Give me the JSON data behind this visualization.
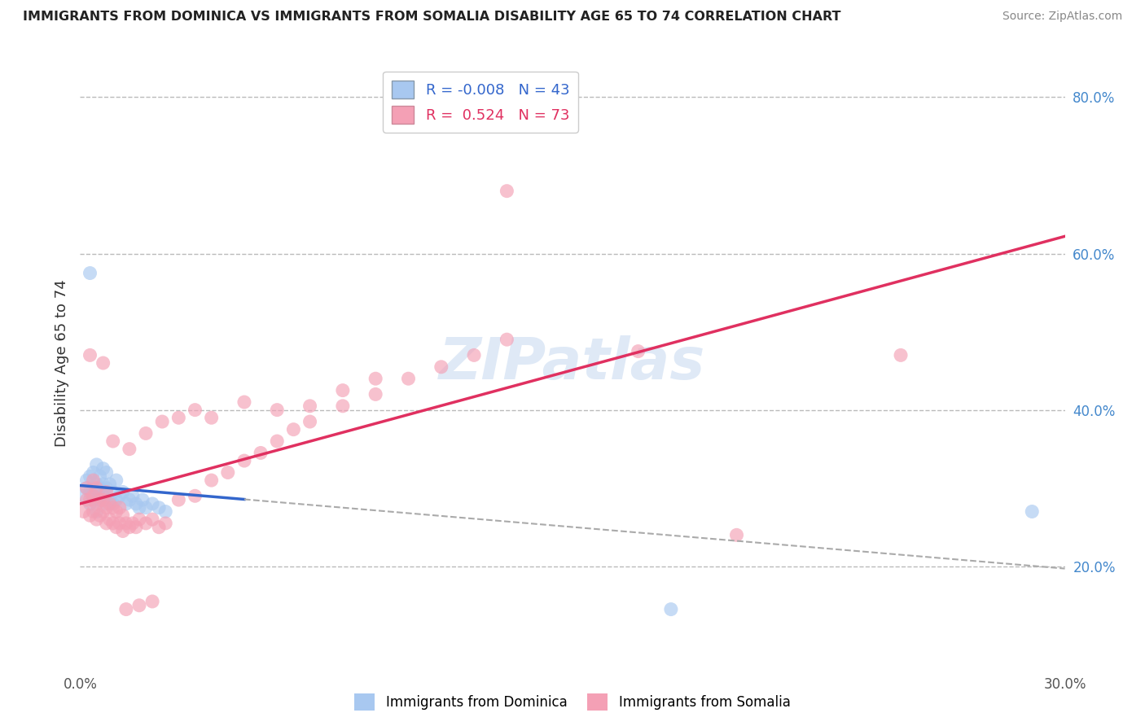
{
  "title": "IMMIGRANTS FROM DOMINICA VS IMMIGRANTS FROM SOMALIA DISABILITY AGE 65 TO 74 CORRELATION CHART",
  "source": "Source: ZipAtlas.com",
  "ylabel": "Disability Age 65 to 74",
  "xlim": [
    0.0,
    0.3
  ],
  "ylim": [
    0.07,
    0.85
  ],
  "dominica_R": -0.008,
  "dominica_N": 43,
  "somalia_R": 0.524,
  "somalia_N": 73,
  "dominica_color": "#A8C8F0",
  "somalia_color": "#F4A0B5",
  "dominica_line_color": "#3366CC",
  "somalia_line_color": "#E03060",
  "watermark": "ZIPatlas",
  "background_color": "#FFFFFF",
  "grid_color": "#BBBBBB",
  "dominica_x": [
    0.001,
    0.002,
    0.002,
    0.003,
    0.003,
    0.003,
    0.004,
    0.004,
    0.004,
    0.005,
    0.005,
    0.005,
    0.005,
    0.006,
    0.006,
    0.006,
    0.007,
    0.007,
    0.007,
    0.008,
    0.008,
    0.008,
    0.009,
    0.009,
    0.01,
    0.01,
    0.011,
    0.011,
    0.012,
    0.013,
    0.014,
    0.015,
    0.016,
    0.017,
    0.018,
    0.019,
    0.02,
    0.022,
    0.024,
    0.026,
    0.003,
    0.29,
    0.18
  ],
  "dominica_y": [
    0.29,
    0.3,
    0.31,
    0.28,
    0.295,
    0.315,
    0.285,
    0.3,
    0.32,
    0.27,
    0.29,
    0.305,
    0.33,
    0.285,
    0.3,
    0.315,
    0.29,
    0.305,
    0.325,
    0.28,
    0.3,
    0.32,
    0.285,
    0.305,
    0.28,
    0.295,
    0.285,
    0.31,
    0.29,
    0.295,
    0.28,
    0.285,
    0.29,
    0.28,
    0.275,
    0.285,
    0.275,
    0.28,
    0.275,
    0.27,
    0.575,
    0.27,
    0.145
  ],
  "somalia_x": [
    0.001,
    0.002,
    0.002,
    0.003,
    0.003,
    0.004,
    0.004,
    0.004,
    0.005,
    0.005,
    0.005,
    0.006,
    0.006,
    0.007,
    0.007,
    0.008,
    0.008,
    0.008,
    0.009,
    0.009,
    0.01,
    0.01,
    0.011,
    0.011,
    0.012,
    0.012,
    0.013,
    0.013,
    0.014,
    0.015,
    0.016,
    0.017,
    0.018,
    0.02,
    0.022,
    0.024,
    0.026,
    0.03,
    0.035,
    0.04,
    0.045,
    0.05,
    0.055,
    0.06,
    0.065,
    0.07,
    0.08,
    0.09,
    0.1,
    0.11,
    0.12,
    0.13,
    0.003,
    0.007,
    0.01,
    0.015,
    0.02,
    0.025,
    0.03,
    0.035,
    0.04,
    0.05,
    0.06,
    0.07,
    0.08,
    0.09,
    0.25,
    0.13,
    0.17,
    0.2,
    0.014,
    0.018,
    0.022
  ],
  "somalia_y": [
    0.27,
    0.285,
    0.3,
    0.265,
    0.285,
    0.27,
    0.29,
    0.31,
    0.26,
    0.28,
    0.3,
    0.265,
    0.285,
    0.27,
    0.285,
    0.255,
    0.275,
    0.295,
    0.26,
    0.28,
    0.255,
    0.275,
    0.25,
    0.27,
    0.255,
    0.275,
    0.245,
    0.265,
    0.255,
    0.25,
    0.255,
    0.25,
    0.26,
    0.255,
    0.26,
    0.25,
    0.255,
    0.285,
    0.29,
    0.31,
    0.32,
    0.335,
    0.345,
    0.36,
    0.375,
    0.385,
    0.405,
    0.42,
    0.44,
    0.455,
    0.47,
    0.49,
    0.47,
    0.46,
    0.36,
    0.35,
    0.37,
    0.385,
    0.39,
    0.4,
    0.39,
    0.41,
    0.4,
    0.405,
    0.425,
    0.44,
    0.47,
    0.68,
    0.475,
    0.24,
    0.145,
    0.15,
    0.155
  ]
}
